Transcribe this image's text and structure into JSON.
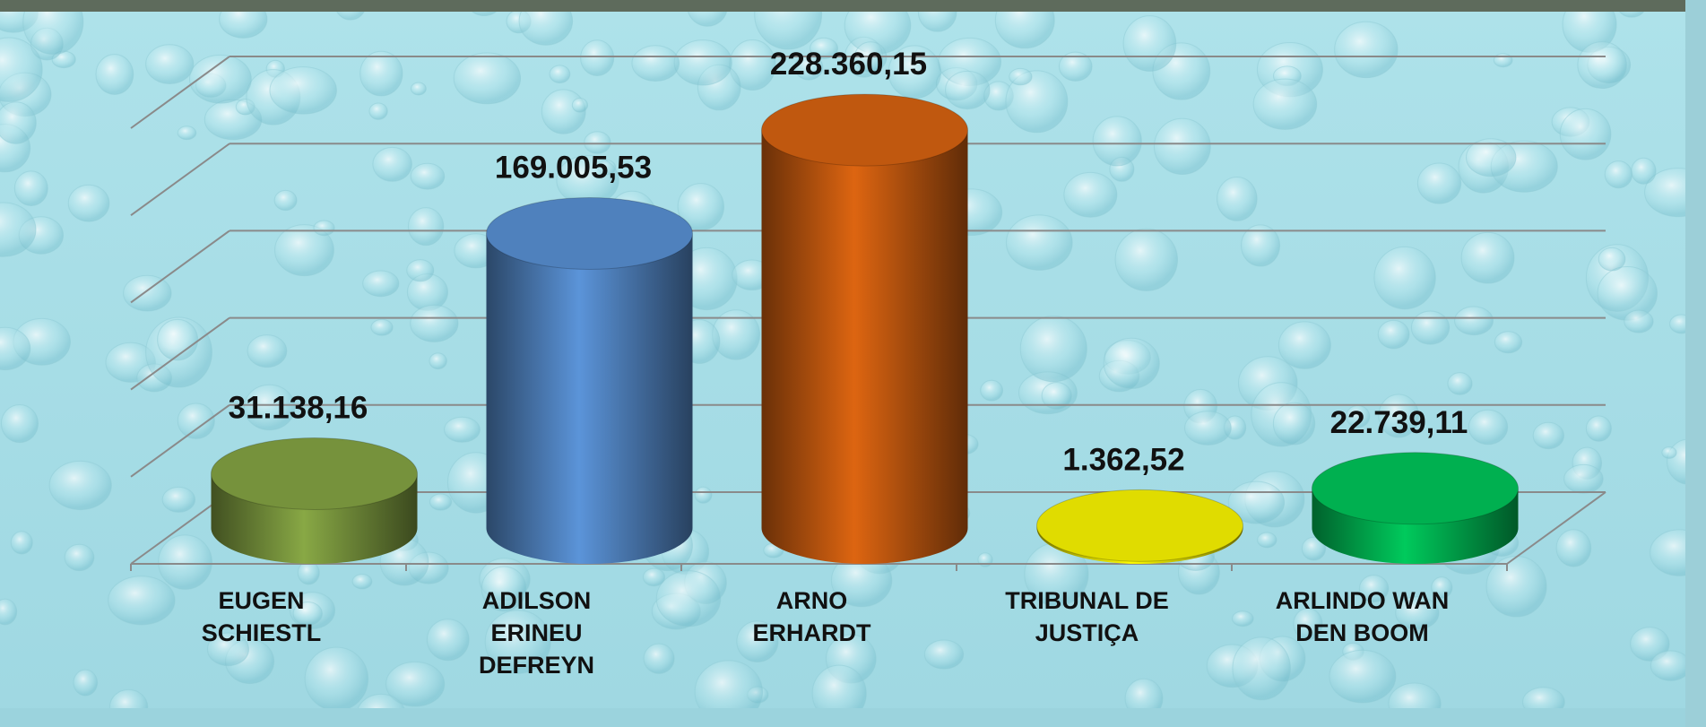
{
  "chart_data": {
    "type": "bar3d",
    "categories": [
      "EUGEN SCHIESTL",
      "ADILSON ERINEU DEFREYN",
      "ARNO ERHARDT",
      "TRIBUNAL DE JUSTIÇA",
      "ARLINDO WAN DEN BOOM"
    ],
    "values": [
      31138.16,
      169005.53,
      228360.15,
      1362.52,
      22739.11
    ],
    "value_labels": [
      "31.138,16",
      "169.005,53",
      "228.360,15",
      "1.362,52",
      "22.739,11"
    ],
    "colors": [
      "#76923c",
      "#4f81bd",
      "#c0580f",
      "#e0dc00",
      "#00b050"
    ],
    "ylim": [
      0,
      250000
    ],
    "yticks": [
      0,
      50000,
      100000,
      150000,
      200000,
      250000
    ],
    "grid": true
  }
}
